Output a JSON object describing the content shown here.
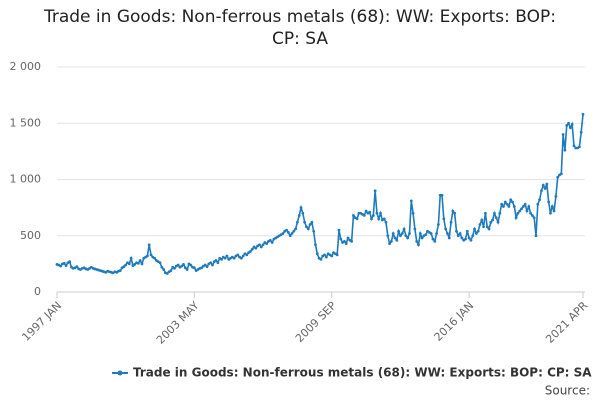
{
  "chart_data": {
    "type": "line",
    "title": "Trade in Goods: Non-ferrous metals (68): WW: Exports: BOP: CP: SA",
    "source": "Source:",
    "grid": true,
    "legend": "bottom",
    "ylim": [
      0,
      2000
    ],
    "yticks": [
      0,
      {
        "value": 500,
        "label": "500"
      },
      {
        "value": 1000,
        "label": "1 000"
      },
      {
        "value": 1500,
        "label": "1 500"
      },
      {
        "value": 2000,
        "label": "2 000"
      }
    ],
    "categories": [
      "1997 JAN",
      null,
      null,
      null,
      null,
      null,
      null,
      null,
      null,
      null,
      null,
      null,
      null,
      null,
      null,
      null,
      null,
      null,
      null,
      null,
      null,
      null,
      null,
      null,
      null,
      null,
      null,
      null,
      null,
      null,
      null,
      null,
      null,
      null,
      null,
      null,
      null,
      null,
      null,
      null,
      null,
      null,
      null,
      null,
      null,
      null,
      null,
      null,
      null,
      null,
      null,
      null,
      null,
      null,
      null,
      null,
      null,
      null,
      null,
      null,
      null,
      null,
      null,
      null,
      null,
      null,
      null,
      null,
      null,
      null,
      null,
      null,
      null,
      null,
      null,
      null,
      "2003 MAY",
      null,
      null,
      null,
      null,
      null,
      null,
      null,
      null,
      null,
      null,
      null,
      null,
      null,
      null,
      null,
      null,
      null,
      null,
      null,
      null,
      null,
      null,
      null,
      null,
      null,
      null,
      null,
      null,
      null,
      null,
      null,
      null,
      null,
      null,
      null,
      null,
      null,
      null,
      null,
      null,
      null,
      null,
      null,
      null,
      null,
      null,
      null,
      null,
      null,
      null,
      null,
      null,
      null,
      null,
      null,
      null,
      null,
      null,
      null,
      null,
      null,
      null,
      null,
      null,
      null,
      null,
      null,
      null,
      null,
      null,
      null,
      null,
      null,
      null,
      null,
      "2009 SEP",
      null,
      null,
      null,
      null,
      null,
      null,
      null,
      null,
      null,
      null,
      null,
      null,
      null,
      null,
      null,
      null,
      null,
      null,
      null,
      null,
      null,
      null,
      null,
      null,
      null,
      null,
      null,
      null,
      null,
      null,
      null,
      null,
      null,
      null,
      null,
      null,
      null,
      null,
      null,
      null,
      null,
      null,
      null,
      null,
      null,
      null,
      null,
      null,
      null,
      null,
      null,
      null,
      null,
      null,
      null,
      null,
      null,
      null,
      null,
      null,
      null,
      null,
      null,
      null,
      null,
      null,
      null,
      null,
      null,
      null,
      null,
      null,
      null,
      null,
      null,
      "2016 JAN",
      null,
      null,
      null,
      null,
      null,
      null,
      null,
      null,
      null,
      null,
      null,
      null,
      null,
      null,
      null,
      null,
      null,
      null,
      null,
      null,
      null,
      null,
      null,
      null,
      null,
      null,
      null,
      null,
      null,
      null,
      null,
      null,
      null,
      null,
      null,
      null,
      null,
      null,
      null,
      null,
      null,
      null,
      null,
      null,
      null,
      null,
      null,
      null,
      null,
      null,
      null,
      null,
      null,
      null,
      null,
      null,
      null,
      null,
      null,
      null,
      null,
      null,
      "2021 APR"
    ],
    "series": [
      {
        "name": "Trade in Goods: Non-ferrous metals (68): WW: Exports: BOP: CP: SA",
        "color": "#1f7bbd",
        "values": [
          245,
          240,
          230,
          250,
          255,
          235,
          260,
          270,
          220,
          210,
          215,
          225,
          205,
          200,
          210,
          215,
          205,
          200,
          210,
          220,
          210,
          205,
          200,
          195,
          190,
          185,
          180,
          175,
          185,
          180,
          175,
          170,
          180,
          175,
          185,
          190,
          215,
          225,
          240,
          260,
          250,
          300,
          235,
          245,
          260,
          255,
          280,
          250,
          300,
          310,
          320,
          420,
          330,
          310,
          300,
          280,
          270,
          260,
          220,
          200,
          170,
          165,
          180,
          190,
          220,
          210,
          230,
          240,
          220,
          230,
          245,
          215,
          200,
          250,
          240,
          220,
          215,
          190,
          200,
          210,
          215,
          230,
          240,
          225,
          250,
          260,
          240,
          270,
          280,
          260,
          300,
          290,
          310,
          300,
          320,
          290,
          300,
          310,
          300,
          320,
          330,
          310,
          300,
          320,
          340,
          330,
          350,
          360,
          380,
          400,
          390,
          410,
          420,
          400,
          420,
          440,
          430,
          450,
          460,
          440,
          470,
          480,
          490,
          500,
          510,
          520,
          540,
          550,
          530,
          500,
          520,
          540,
          560,
          620,
          680,
          750,
          700,
          620,
          580,
          560,
          600,
          620,
          540,
          420,
          340,
          300,
          290,
          320,
          330,
          310,
          340,
          330,
          320,
          350,
          340,
          330,
          550,
          470,
          440,
          450,
          430,
          480,
          460,
          450,
          680,
          660,
          650,
          700,
          700,
          690,
          680,
          720,
          700,
          710,
          650,
          680,
          900,
          700,
          650,
          700,
          640,
          650,
          620,
          500,
          430,
          450,
          520,
          480,
          460,
          540,
          500,
          520,
          560,
          500,
          480,
          520,
          810,
          700,
          560,
          450,
          420,
          520,
          480,
          500,
          510,
          540,
          530,
          520,
          470,
          450,
          520,
          600,
          860,
          860,
          650,
          560,
          520,
          480,
          620,
          720,
          700,
          540,
          500,
          520,
          480,
          460,
          470,
          540,
          480,
          460,
          500,
          560,
          520,
          540,
          600,
          640,
          580,
          700,
          580,
          560,
          620,
          640,
          700,
          660,
          620,
          700,
          780,
          760,
          800,
          780,
          760,
          820,
          800,
          760,
          660,
          700,
          720,
          740,
          760,
          780,
          720,
          760,
          700,
          680,
          660,
          500,
          780,
          820,
          900,
          950,
          920,
          960,
          800,
          700,
          760,
          720,
          850,
          1020,
          1040,
          1050,
          1400,
          1260,
          1480,
          1500,
          1460,
          1490,
          1300,
          1280,
          1280,
          1290,
          1420,
          1580
        ]
      }
    ]
  }
}
